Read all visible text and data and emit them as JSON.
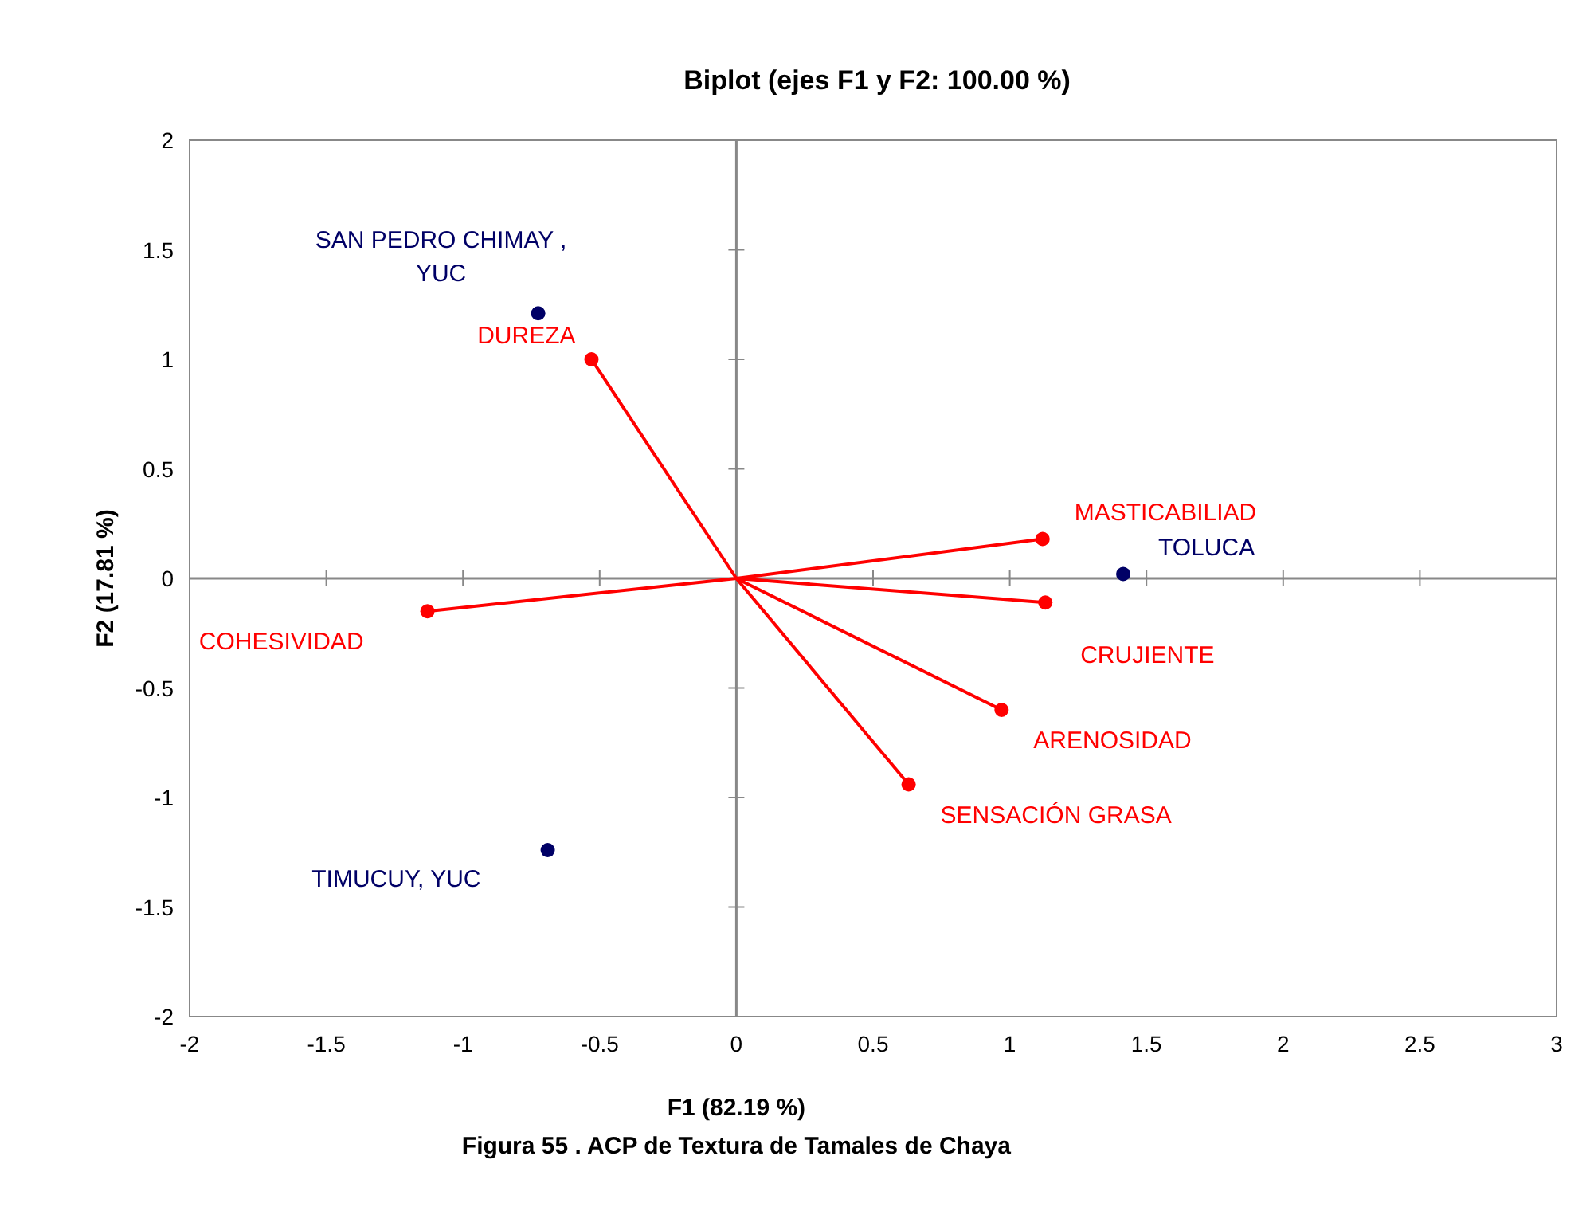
{
  "chart_data": {
    "type": "scatter",
    "title": "Biplot (ejes F1 y F2: 100.00 %)",
    "xlabel": "F1 (82.19 %)",
    "ylabel": "F2 (17.81 %)",
    "xlim": [
      -2,
      3
    ],
    "xticks": [
      -2,
      -1.5,
      -1,
      -0.5,
      0,
      0.5,
      1,
      1.5,
      2,
      2.5,
      3
    ],
    "ylim": [
      -2,
      2
    ],
    "yticks": [
      -2,
      -1.5,
      -1,
      -0.5,
      0,
      0.5,
      1,
      1.5,
      2
    ],
    "series": [
      {
        "type": "line",
        "color": "#ff0000",
        "marker": "none",
        "line_style": "solid",
        "x": [
          0,
          -0.53,
          0,
          1.12,
          0,
          1.13,
          0,
          0.97,
          0,
          0.63,
          0,
          -1.13
        ],
        "values": [
          0,
          1.0,
          0,
          0.18,
          0,
          -0.11,
          0,
          -0.6,
          0,
          -0.94,
          0,
          -0.15
        ]
      },
      {
        "color": "#ff0000",
        "marker": "circle",
        "x": [
          -0.53,
          1.12,
          1.13,
          0.97,
          0.63,
          -1.13
        ],
        "values": [
          1.0,
          0.18,
          -0.11,
          -0.6,
          -0.94,
          -0.15
        ]
      },
      {
        "color": "#000066",
        "marker": "circle",
        "x": [
          -0.725,
          1.415,
          -0.69
        ],
        "values": [
          1.21,
          0.02,
          -1.24
        ]
      }
    ],
    "annotations": [
      {
        "text": "DUREZA",
        "x": -0.53,
        "y": 1.0
      },
      {
        "text": "MASTICABILIAD",
        "x": 1.12,
        "y": 0.18
      },
      {
        "text": "CRUJIENTE",
        "x": 1.13,
        "y": -0.11
      },
      {
        "text": "ARENOSIDAD",
        "x": 0.97,
        "y": -0.6
      },
      {
        "text": "SENSACIÓN GRASA",
        "x": 0.63,
        "y": -0.94
      },
      {
        "text": "COHESIVIDAD",
        "x": -1.13,
        "y": -0.15
      },
      {
        "text": "SAN PEDRO CHIMAY ,\nYUC",
        "x": -0.725,
        "y": 1.21
      },
      {
        "text": "TOLUCA",
        "x": 1.415,
        "y": 0.02
      },
      {
        "text": "TIMUCUY, YUC",
        "x": -0.69,
        "y": -1.24
      },
      "Figura 55 . ACP de Textura de Tamales de Chaya"
    ]
  }
}
